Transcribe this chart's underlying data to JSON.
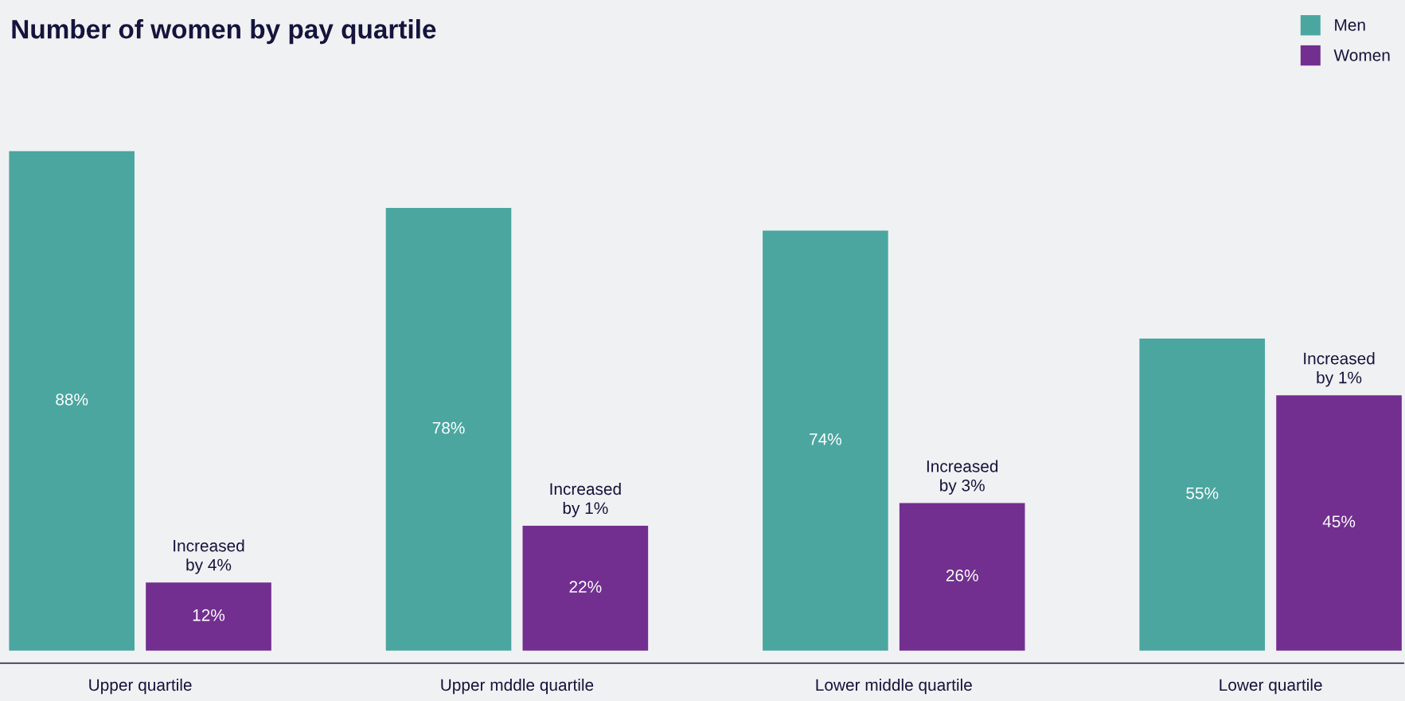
{
  "chart_data": {
    "type": "bar",
    "title": "Number of women by pay quartile",
    "categories": [
      "Upper quartile",
      "Upper mddle quartile",
      "Lower middle quartile",
      "Lower quartile"
    ],
    "series": [
      {
        "name": "Men",
        "color": "#4ba6a0",
        "values": [
          88,
          78,
          74,
          55
        ],
        "value_labels": [
          "88%",
          "78%",
          "74%",
          "55%"
        ]
      },
      {
        "name": "Women",
        "color": "#722f8f",
        "values": [
          12,
          22,
          26,
          45
        ],
        "value_labels": [
          "12%",
          "22%",
          "26%",
          "45%"
        ]
      }
    ],
    "annotations": [
      "Increased\nby 4%",
      "Increased\nby 1%",
      "Increased\nby 3%",
      "Increased\nby 1%"
    ],
    "legend": "top right",
    "grid": false
  }
}
